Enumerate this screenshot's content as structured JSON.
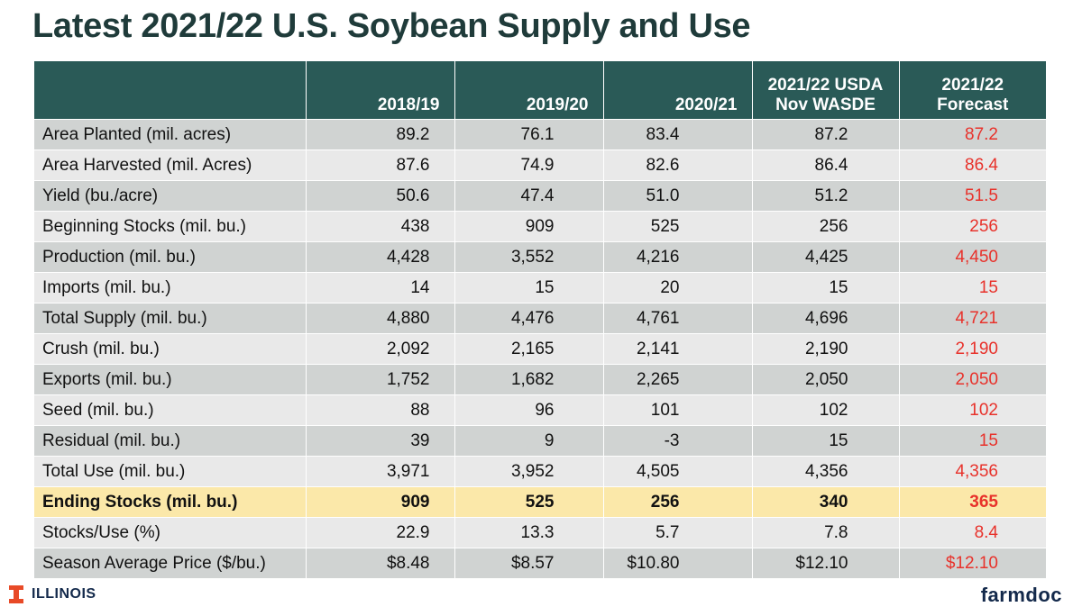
{
  "title": "Latest 2021/22 U.S. Soybean Supply and Use",
  "table": {
    "headers": [
      "",
      "2018/19",
      "2019/20",
      "2020/21",
      "2021/22 USDA\nNov WASDE",
      "2021/22\nForecast"
    ],
    "rows": [
      [
        "Area Planted (mil. acres)",
        "89.2",
        "76.1",
        "83.4",
        "87.2",
        "87.2"
      ],
      [
        "Area Harvested (mil. Acres)",
        "87.6",
        "74.9",
        "82.6",
        "86.4",
        "86.4"
      ],
      [
        "Yield (bu./acre)",
        "50.6",
        "47.4",
        "51.0",
        "51.2",
        "51.5"
      ],
      [
        "Beginning Stocks (mil. bu.)",
        "438",
        "909",
        "525",
        "256",
        "256"
      ],
      [
        "Production (mil. bu.)",
        "4,428",
        "3,552",
        "4,216",
        "4,425",
        "4,450"
      ],
      [
        "Imports (mil. bu.)",
        "14",
        "15",
        "20",
        "15",
        "15"
      ],
      [
        "Total Supply (mil. bu.)",
        "4,880",
        "4,476",
        "4,761",
        "4,696",
        "4,721"
      ],
      [
        "Crush (mil. bu.)",
        "2,092",
        "2,165",
        "2,141",
        "2,190",
        "2,190"
      ],
      [
        "Exports (mil. bu.)",
        "1,752",
        "1,682",
        "2,265",
        "2,050",
        "2,050"
      ],
      [
        "Seed (mil. bu.)",
        "88",
        "96",
        "101",
        "102",
        "102"
      ],
      [
        "Residual (mil. bu.)",
        "39",
        "9",
        "-3",
        "15",
        "15"
      ],
      [
        "Total Use (mil. bu.)",
        "3,971",
        "3,952",
        "4,505",
        "4,356",
        "4,356"
      ],
      [
        "Ending Stocks (mil. bu.)",
        "909",
        "525",
        "256",
        "340",
        "365"
      ],
      [
        "Stocks/Use (%)",
        "22.9",
        "13.3",
        "5.7",
        "7.8",
        "8.4"
      ],
      [
        "Season Average Price ($/bu.)",
        "$8.48",
        "$8.57",
        "$10.80",
        "$12.10",
        "$12.10"
      ]
    ],
    "highlight_row": 12,
    "colors": {
      "header_bg": "#2a5a57",
      "row_dark": "#d0d3d2",
      "row_light": "#e9e9e9",
      "highlight": "#fbe8a9",
      "forecast_text": "#e8322b"
    }
  },
  "footer": {
    "left_logo_text": "ILLINOIS",
    "left_logo_icon": "block-i-icon",
    "right_logo_text": "farmdoc"
  }
}
